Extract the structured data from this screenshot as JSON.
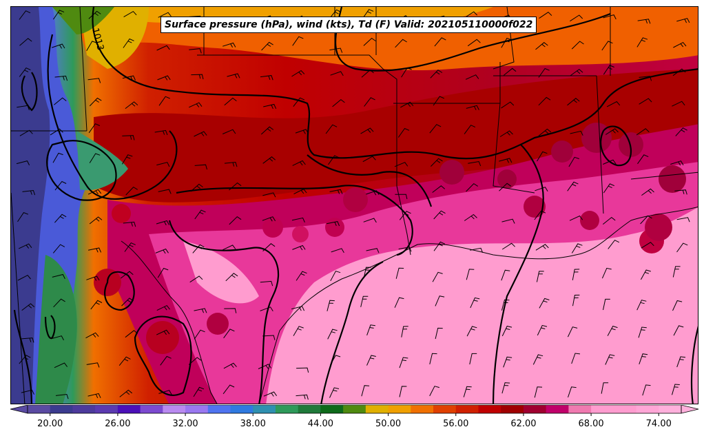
{
  "title": "Surface pressure (hPa), wind (kts), Td (F) Valid: 202105110000f022",
  "isobar_label": "1013",
  "colorbar": {
    "min": 18,
    "max": 76,
    "step": 2,
    "tick_labels": [
      "20.00",
      "26.00",
      "32.00",
      "38.00",
      "44.00",
      "50.00",
      "56.00",
      "62.00",
      "68.00",
      "74.00"
    ],
    "tick_values": [
      20,
      26,
      32,
      38,
      44,
      50,
      56,
      62,
      68,
      74
    ],
    "colors": [
      "#5a4aa2",
      "#3b3b8f",
      "#4d3a9c",
      "#5b3ab0",
      "#4b10b8",
      "#7c4ad0",
      "#b98af0",
      "#9a78f0",
      "#4f74f0",
      "#2f7ae0",
      "#2f90b0",
      "#2e9a5a",
      "#1f7a3a",
      "#0e6a1a",
      "#4f8a10",
      "#e0b000",
      "#f0a000",
      "#f07000",
      "#e04000",
      "#d02000",
      "#c00000",
      "#a00000",
      "#a00030",
      "#c0006a",
      "#f07ab0",
      "#ff9ccf",
      "#ff9ccf",
      "#ffa6d6",
      "#ffb0dc"
    ]
  }
}
